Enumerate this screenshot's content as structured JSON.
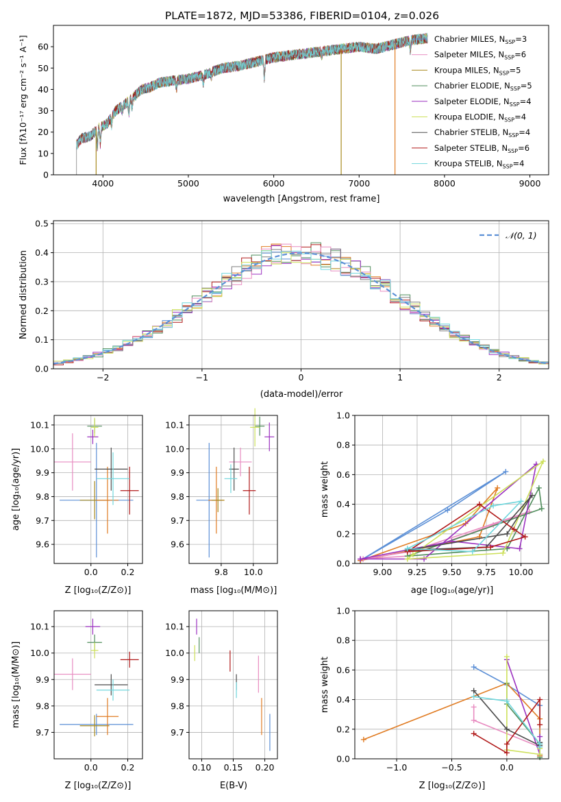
{
  "figure": {
    "title": "PLATE=1872, MJD=53386, FIBERID=0104, z=0.026"
  },
  "chart_data": [
    {
      "id": "spectrum",
      "type": "line",
      "xlabel": "wavelength [Angstrom, rest frame]",
      "ylabel": "Flux [fλ10⁻¹⁷ erg cm⁻² s⁻¹ A⁻¹]",
      "xlim": [
        3420,
        9220
      ],
      "ylim": [
        0,
        70
      ],
      "xticks": [
        4000,
        5000,
        6000,
        7000,
        8000,
        9000
      ],
      "yticks": [
        0,
        10,
        20,
        30,
        40,
        50,
        60
      ],
      "legend_position": "top-right",
      "continuum": {
        "x": [
          3690,
          3750,
          3850,
          3950,
          4050,
          4150,
          4250,
          4350,
          4450,
          4550,
          4650,
          4800,
          5000,
          5200,
          5400,
          5600,
          5800,
          6000,
          6200,
          6400,
          6600,
          6800,
          7000,
          7200,
          7400,
          7600,
          7800
        ],
        "y": [
          14,
          17,
          18,
          22,
          24,
          30,
          33,
          36,
          40,
          41,
          43,
          44,
          45,
          47,
          50,
          51,
          53,
          55,
          56,
          57,
          58,
          59,
          60,
          59,
          61,
          63,
          64
        ]
      },
      "series": [
        {
          "name": "Chabrier MILES, N_SSP=3",
          "color": "#5b8fd6",
          "legend": "Chabrier MILES, N",
          "nssp": "=3"
        },
        {
          "name": "Salpeter MILES, N_SSP=6",
          "color": "#e88bc0",
          "legend": "Salpeter MILES, N",
          "nssp": "=6"
        },
        {
          "name": "Kroupa MILES, N_SSP=5",
          "color": "#a88a1e",
          "legend": "Kroupa MILES, N",
          "nssp": "=5"
        },
        {
          "name": "Chabrier ELODIE, N_SSP=5",
          "color": "#4e8c5a",
          "legend": "Chabrier ELODIE, N",
          "nssp": "=5"
        },
        {
          "name": "Salpeter ELODIE, N_SSP=4",
          "color": "#9b30c0",
          "legend": "Salpeter ELODIE, N",
          "nssp": "=4"
        },
        {
          "name": "Kroupa ELODIE, N_SSP=4",
          "color": "#cde05a",
          "legend": "Kroupa ELODIE, N",
          "nssp": "=4"
        },
        {
          "name": "Chabrier STELIB, N_SSP=4",
          "color": "#4a4a4a",
          "legend": "Chabrier STELIB, N",
          "nssp": "=4"
        },
        {
          "name": "Salpeter STELIB, N_SSP=6",
          "color": "#b01818",
          "legend": "Salpeter STELIB, N",
          "nssp": "=6"
        },
        {
          "name": "Kroupa STELIB, N_SSP=4",
          "color": "#6fd6dc",
          "legend": "Kroupa STELIB, N",
          "nssp": "=4"
        }
      ],
      "legend_sub": "SSP",
      "drops": [
        {
          "x": 3920,
          "color": "#a88a1e"
        },
        {
          "x": 6790,
          "color": "#a88a1e"
        },
        {
          "x": 7420,
          "color": "#e07b22"
        }
      ]
    },
    {
      "id": "residuals",
      "type": "histogram",
      "xlabel": "(data-model)/error",
      "ylabel": "Normed distribution",
      "xlim": [
        -2.5,
        2.5
      ],
      "ylim": [
        0,
        0.51
      ],
      "xticks": [
        -2,
        -1,
        0,
        1,
        2
      ],
      "yticks": [
        0.0,
        0.1,
        0.2,
        0.3,
        0.4,
        0.5
      ],
      "grid": true,
      "legend_position": "top-right",
      "reference_curve": {
        "name": "𝒩(0, 1)",
        "legend_text": "𝒩(0, 1)",
        "color": "#5b8fd6",
        "style": "dashed",
        "mean": 0,
        "sigma": 1
      },
      "bin_width": 0.1,
      "colors": [
        "#5b8fd6",
        "#e07b22",
        "#4e8c5a",
        "#b01818",
        "#9b30c0",
        "#e88bc0",
        "#7d7d7d",
        "#cde05a",
        "#6fd6dc"
      ]
    },
    {
      "id": "age-vs-Z",
      "type": "errorbar",
      "xlabel": "Z [log₁₀(Z/Z⊙)]",
      "ylabel": "age  [log₁₀(age/yr)]",
      "xlim": [
        -0.2,
        0.28
      ],
      "ylim": [
        9.52,
        10.14
      ],
      "xticks": [
        0.0,
        0.2
      ],
      "xticklabels": [
        "0.0",
        "0.2"
      ],
      "yticks": [
        9.6,
        9.7,
        9.8,
        9.9,
        10.0,
        10.1
      ],
      "points": [
        {
          "x": 0.03,
          "y": 9.785,
          "xerr": 0.2,
          "yerr": 0.24,
          "color": "#5b8fd6"
        },
        {
          "x": -0.1,
          "y": 9.945,
          "xerr": 0.1,
          "yerr": 0.12,
          "color": "#e88bc0"
        },
        {
          "x": 0.02,
          "y": 9.785,
          "xerr": 0.08,
          "yerr": 0.08,
          "color": "#a88a1e"
        },
        {
          "x": 0.09,
          "y": 9.785,
          "xerr": 0.06,
          "yerr": 0.14,
          "color": "#e07b22"
        },
        {
          "x": 0.02,
          "y": 10.095,
          "xerr": 0.04,
          "yerr": 0.03,
          "color": "#4e8c5a"
        },
        {
          "x": 0.01,
          "y": 10.05,
          "xerr": 0.03,
          "yerr": 0.03,
          "color": "#9b30c0"
        },
        {
          "x": 0.02,
          "y": 10.09,
          "xerr": 0.02,
          "yerr": 0.04,
          "color": "#cde05a"
        },
        {
          "x": 0.11,
          "y": 9.915,
          "xerr": 0.09,
          "yerr": 0.09,
          "color": "#4a4a4a"
        },
        {
          "x": 0.21,
          "y": 9.825,
          "xerr": 0.05,
          "yerr": 0.1,
          "color": "#b01818"
        },
        {
          "x": 0.12,
          "y": 9.875,
          "xerr": 0.09,
          "yerr": 0.11,
          "color": "#6fd6dc"
        }
      ]
    },
    {
      "id": "age-vs-mass",
      "type": "errorbar",
      "xlabel": "mass [log₁₀(M/M⊙)]",
      "ylabel": "",
      "xlim": [
        9.6,
        10.15
      ],
      "ylim": [
        9.52,
        10.14
      ],
      "xticks": [
        9.8,
        10.0
      ],
      "xticklabels": [
        "9.8",
        "10.0"
      ],
      "yticks": [
        9.6,
        9.7,
        9.8,
        9.9,
        10.0,
        10.1
      ],
      "points": [
        {
          "x": 9.725,
          "y": 9.785,
          "xerr": 0.08,
          "yerr": 0.24,
          "color": "#5b8fd6"
        },
        {
          "x": 9.92,
          "y": 9.945,
          "xerr": 0.07,
          "yerr": 0.06,
          "color": "#e88bc0"
        },
        {
          "x": 9.77,
          "y": 9.785,
          "xerr": 0.05,
          "yerr": 0.14,
          "color": "#e07b22"
        },
        {
          "x": 9.78,
          "y": 9.785,
          "xerr": 0.04,
          "yerr": 0.05,
          "color": "#a88a1e"
        },
        {
          "x": 10.04,
          "y": 10.095,
          "xerr": 0.03,
          "yerr": 0.04,
          "color": "#4e8c5a"
        },
        {
          "x": 10.1,
          "y": 10.05,
          "xerr": 0.03,
          "yerr": 0.06,
          "color": "#9b30c0"
        },
        {
          "x": 10.01,
          "y": 10.09,
          "xerr": 0.03,
          "yerr": 0.08,
          "color": "#cde05a"
        },
        {
          "x": 9.88,
          "y": 9.915,
          "xerr": 0.03,
          "yerr": 0.09,
          "color": "#4a4a4a"
        },
        {
          "x": 9.975,
          "y": 9.825,
          "xerr": 0.04,
          "yerr": 0.1,
          "color": "#b01818"
        },
        {
          "x": 9.86,
          "y": 9.875,
          "xerr": 0.04,
          "yerr": 0.06,
          "color": "#6fd6dc"
        }
      ]
    },
    {
      "id": "massweight-vs-age",
      "type": "line",
      "xlabel": "age  [log₁₀(age/yr)]",
      "ylabel": "mass weight",
      "xlim": [
        8.8,
        10.2
      ],
      "ylim": [
        0,
        1.0
      ],
      "xticks": [
        9.0,
        9.25,
        9.5,
        9.75,
        10.0
      ],
      "xticklabels": [
        "9.00",
        "9.25",
        "9.50",
        "9.75",
        "10.00"
      ],
      "yticks": [
        0.0,
        0.2,
        0.4,
        0.6,
        0.8,
        1.0
      ],
      "grid": true,
      "series": [
        {
          "name": "Chabrier MILES",
          "color": "#5b8fd6",
          "x": [
            8.84,
            9.47,
            9.89,
            8.84
          ],
          "y": [
            0.02,
            0.36,
            0.62,
            0.02
          ]
        },
        {
          "name": "Kroupa MILES",
          "color": "#e07b22",
          "x": [
            8.84,
            9.6,
            9.83,
            9.7,
            8.84
          ],
          "y": [
            0.02,
            0.27,
            0.51,
            0.18,
            0.02
          ]
        },
        {
          "name": "Salpeter MILES",
          "color": "#e88bc0",
          "x": [
            8.86,
            9.18,
            9.8,
            10.06,
            9.2,
            8.86
          ],
          "y": [
            0.03,
            0.05,
            0.26,
            0.35,
            0.08,
            0.03
          ]
        },
        {
          "name": "Chabrier ELODIE",
          "color": "#4e8c5a",
          "x": [
            9.18,
            9.9,
            10.13,
            10.15,
            9.18
          ],
          "y": [
            0.05,
            0.1,
            0.51,
            0.37,
            0.05
          ]
        },
        {
          "name": "Salpeter ELODIE",
          "color": "#9b30c0",
          "x": [
            8.84,
            9.5,
            9.99,
            10.11,
            9.3,
            8.84
          ],
          "y": [
            0.03,
            0.15,
            0.1,
            0.67,
            0.03,
            0.03
          ]
        },
        {
          "name": "Kroupa ELODIE",
          "color": "#cde05a",
          "x": [
            9.18,
            9.87,
            10.16,
            9.22,
            9.18
          ],
          "y": [
            0.03,
            0.07,
            0.69,
            0.06,
            0.03
          ]
        },
        {
          "name": "Chabrier STELIB",
          "color": "#4a4a4a",
          "x": [
            9.18,
            9.75,
            10.08,
            9.9,
            9.18
          ],
          "y": [
            0.09,
            0.11,
            0.46,
            0.2,
            0.09
          ]
        },
        {
          "name": "Salpeter STELIB",
          "color": "#b01818",
          "x": [
            9.18,
            9.7,
            9.95,
            10.03,
            9.78,
            9.18
          ],
          "y": [
            0.08,
            0.4,
            0.23,
            0.18,
            0.11,
            0.08
          ]
        },
        {
          "name": "Kroupa STELIB",
          "color": "#6fd6dc",
          "x": [
            9.18,
            9.8,
            10.0,
            9.65,
            9.18
          ],
          "y": [
            0.1,
            0.39,
            0.42,
            0.08,
            0.1
          ]
        }
      ]
    },
    {
      "id": "mass-vs-Z",
      "type": "errorbar",
      "xlabel": "Z [log₁₀(Z/Z⊙)]",
      "ylabel": "mass [log₁₀(M/M⊙)]",
      "xlim": [
        -0.2,
        0.28
      ],
      "ylim": [
        9.6,
        10.16
      ],
      "xticks": [
        0.0,
        0.2
      ],
      "xticklabels": [
        "0.0",
        "0.2"
      ],
      "yticks": [
        9.7,
        9.8,
        9.9,
        10.0,
        10.1
      ],
      "points": [
        {
          "x": 0.03,
          "y": 9.73,
          "xerr": 0.2,
          "yerr": 0.04,
          "color": "#5b8fd6"
        },
        {
          "x": -0.1,
          "y": 9.92,
          "xerr": 0.1,
          "yerr": 0.06,
          "color": "#e88bc0"
        },
        {
          "x": 0.02,
          "y": 9.725,
          "xerr": 0.08,
          "yerr": 0.04,
          "color": "#a88a1e"
        },
        {
          "x": 0.09,
          "y": 9.76,
          "xerr": 0.06,
          "yerr": 0.07,
          "color": "#e07b22"
        },
        {
          "x": 0.02,
          "y": 10.04,
          "xerr": 0.04,
          "yerr": 0.03,
          "color": "#4e8c5a"
        },
        {
          "x": 0.01,
          "y": 10.1,
          "xerr": 0.04,
          "yerr": 0.03,
          "color": "#9b30c0"
        },
        {
          "x": 0.02,
          "y": 10.01,
          "xerr": 0.02,
          "yerr": 0.03,
          "color": "#cde05a"
        },
        {
          "x": 0.11,
          "y": 9.88,
          "xerr": 0.09,
          "yerr": 0.04,
          "color": "#4a4a4a"
        },
        {
          "x": 0.21,
          "y": 9.975,
          "xerr": 0.05,
          "yerr": 0.03,
          "color": "#b01818"
        },
        {
          "x": 0.12,
          "y": 9.86,
          "xerr": 0.09,
          "yerr": 0.04,
          "color": "#6fd6dc"
        }
      ]
    },
    {
      "id": "mass-vs-EBV",
      "type": "errorbar",
      "xlabel": "E(B-V)",
      "ylabel": "",
      "xlim": [
        0.08,
        0.22
      ],
      "ylim": [
        9.6,
        10.16
      ],
      "xticks": [
        0.1,
        0.15,
        0.2
      ],
      "xticklabels": [
        "0.10",
        "0.15",
        "0.20"
      ],
      "yticks": [
        9.7,
        9.8,
        9.9,
        10.0,
        10.1
      ],
      "points": [
        {
          "x": 0.208,
          "y": 9.7,
          "xerr": 0,
          "yerr": 0.07,
          "color": "#5b8fd6"
        },
        {
          "x": 0.19,
          "y": 9.92,
          "xerr": 0,
          "yerr": 0.07,
          "color": "#e88bc0"
        },
        {
          "x": 0.195,
          "y": 9.76,
          "xerr": 0,
          "yerr": 0.07,
          "color": "#e07b22"
        },
        {
          "x": 0.096,
          "y": 10.03,
          "xerr": 0,
          "yerr": 0.03,
          "color": "#4e8c5a"
        },
        {
          "x": 0.092,
          "y": 10.1,
          "xerr": 0,
          "yerr": 0.03,
          "color": "#9b30c0"
        },
        {
          "x": 0.089,
          "y": 10.0,
          "xerr": 0,
          "yerr": 0.03,
          "color": "#cde05a"
        },
        {
          "x": 0.155,
          "y": 9.89,
          "xerr": 0,
          "yerr": 0.03,
          "color": "#4a4a4a"
        },
        {
          "x": 0.145,
          "y": 9.97,
          "xerr": 0,
          "yerr": 0.04,
          "color": "#b01818"
        },
        {
          "x": 0.155,
          "y": 9.86,
          "xerr": 0,
          "yerr": 0.03,
          "color": "#6fd6dc"
        }
      ]
    },
    {
      "id": "massweight-vs-Z",
      "type": "line",
      "xlabel": "Z [log₁₀(Z/Z⊙)]",
      "ylabel": "mass weight",
      "xlim": [
        -1.38,
        0.38
      ],
      "ylim": [
        0,
        1.0
      ],
      "xticks": [
        -1.0,
        -0.5,
        0.0
      ],
      "xticklabels": [
        "−1.0",
        "−0.5",
        "0.0"
      ],
      "yticks": [
        0.0,
        0.2,
        0.4,
        0.6,
        0.8,
        1.0
      ],
      "grid": true,
      "series": [
        {
          "name": "Chabrier MILES",
          "color": "#5b8fd6",
          "x": [
            -0.3,
            0.0,
            0.3,
            0.3
          ],
          "y": [
            0.62,
            0.5,
            0.36,
            0.02
          ]
        },
        {
          "name": "Kroupa MILES",
          "color": "#e07b22",
          "x": [
            -1.3,
            0.0,
            0.3,
            0.3
          ],
          "y": [
            0.13,
            0.51,
            0.27,
            0.02
          ]
        },
        {
          "name": "Salpeter MILES",
          "color": "#e88bc0",
          "x": [
            -0.3,
            -0.3,
            0.3,
            0.3
          ],
          "y": [
            0.35,
            0.26,
            0.08,
            0.03
          ]
        },
        {
          "name": "Chabrier ELODIE",
          "color": "#4e8c5a",
          "x": [
            0.0,
            0.0,
            0.3,
            0.3
          ],
          "y": [
            0.51,
            0.37,
            0.1,
            0.01
          ]
        },
        {
          "name": "Salpeter ELODIE",
          "color": "#9b30c0",
          "x": [
            0.0,
            0.3,
            0.3
          ],
          "y": [
            0.67,
            0.03,
            0.15
          ]
        },
        {
          "name": "Kroupa ELODIE",
          "color": "#cde05a",
          "x": [
            0.0,
            0.0,
            0.3,
            0.3
          ],
          "y": [
            0.69,
            0.06,
            0.03,
            0.07
          ]
        },
        {
          "name": "Chabrier STELIB",
          "color": "#4a4a4a",
          "x": [
            -0.3,
            0.0,
            0.3,
            0.3
          ],
          "y": [
            0.46,
            0.2,
            0.09,
            0.11
          ]
        },
        {
          "name": "Salpeter STELIB",
          "color": "#b01818",
          "x": [
            -0.3,
            0.0,
            0.0,
            0.3,
            0.3
          ],
          "y": [
            0.17,
            0.04,
            0.1,
            0.4,
            0.23
          ]
        },
        {
          "name": "Kroupa STELIB",
          "color": "#6fd6dc",
          "x": [
            -0.3,
            0.0,
            0.3,
            0.3
          ],
          "y": [
            0.42,
            0.39,
            0.1,
            0.08
          ]
        }
      ]
    }
  ]
}
